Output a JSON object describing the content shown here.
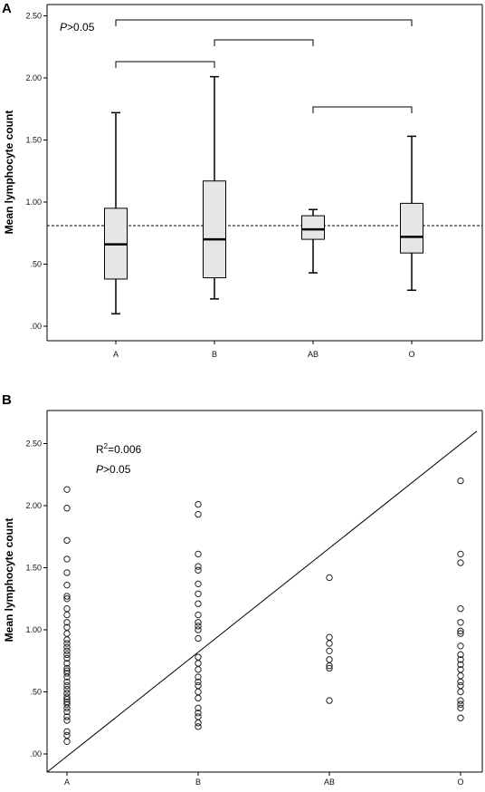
{
  "chart_data": [
    {
      "type": "box",
      "panel_label": "A",
      "ylabel": "Mean lymphocyte count",
      "categories": [
        "A",
        "B",
        "AB",
        "O"
      ],
      "y_ticks": [
        ".00",
        ".50",
        "1.00",
        "1.50",
        "2.00",
        "2.50"
      ],
      "ylim": [
        0,
        2.5
      ],
      "boxes": [
        {
          "category": "A",
          "min": 0.1,
          "q1": 0.38,
          "median": 0.66,
          "q3": 0.95,
          "max": 1.72
        },
        {
          "category": "B",
          "min": 0.22,
          "q1": 0.39,
          "median": 0.7,
          "q3": 1.17,
          "max": 2.01
        },
        {
          "category": "AB",
          "min": 0.43,
          "q1": 0.7,
          "median": 0.78,
          "q3": 0.89,
          "max": 0.94
        },
        {
          "category": "O",
          "min": 0.29,
          "q1": 0.59,
          "median": 0.72,
          "q3": 0.99,
          "max": 1.53
        }
      ],
      "reference_line": 0.81,
      "comparisons": [
        {
          "from": "A",
          "to": "B"
        },
        {
          "from": "B",
          "to": "AB"
        },
        {
          "from": "AB",
          "to": "O"
        },
        {
          "from": "A",
          "to": "O"
        }
      ],
      "annotation_prefix": "P",
      "annotation_suffix": ">0.05"
    },
    {
      "type": "scatter",
      "panel_label": "B",
      "ylabel": "Mean lymphocyte count",
      "categories": [
        "A",
        "B",
        "AB",
        "O"
      ],
      "y_ticks": [
        ".00",
        ".50",
        "1.00",
        "1.50",
        "2.00",
        "2.50"
      ],
      "ylim": [
        0,
        2.5
      ],
      "points": {
        "A": [
          2.13,
          1.98,
          1.72,
          1.57,
          1.46,
          1.36,
          1.27,
          1.25,
          1.17,
          1.12,
          1.06,
          1.02,
          0.97,
          0.92,
          0.89,
          0.86,
          0.83,
          0.8,
          0.77,
          0.73,
          0.69,
          0.67,
          0.65,
          0.62,
          0.58,
          0.55,
          0.52,
          0.49,
          0.46,
          0.44,
          0.42,
          0.4,
          0.37,
          0.34,
          0.3,
          0.27,
          0.18,
          0.15,
          0.1
        ],
        "B": [
          2.01,
          1.93,
          1.61,
          1.51,
          1.48,
          1.37,
          1.29,
          1.21,
          1.12,
          1.06,
          1.03,
          1.0,
          0.93,
          0.78,
          0.73,
          0.68,
          0.62,
          0.58,
          0.55,
          0.5,
          0.45,
          0.37,
          0.33,
          0.3,
          0.25,
          0.22
        ],
        "AB": [
          1.42,
          0.94,
          0.89,
          0.83,
          0.76,
          0.71,
          0.69,
          0.43
        ],
        "O": [
          2.2,
          1.61,
          1.54,
          1.17,
          1.06,
          0.99,
          0.97,
          0.87,
          0.8,
          0.76,
          0.72,
          0.68,
          0.63,
          0.58,
          0.55,
          0.5,
          0.43,
          0.4,
          0.37,
          0.29
        ]
      },
      "fit_line": {
        "start": {
          "category": "A",
          "y": 0.0
        },
        "end": {
          "x_index": 4.5,
          "y": 2.6
        }
      },
      "r2_text": "R",
      "r2_sup": "2",
      "r2_value": "=0.006",
      "annotation_prefix": "P",
      "annotation_suffix": ">0.05"
    }
  ]
}
